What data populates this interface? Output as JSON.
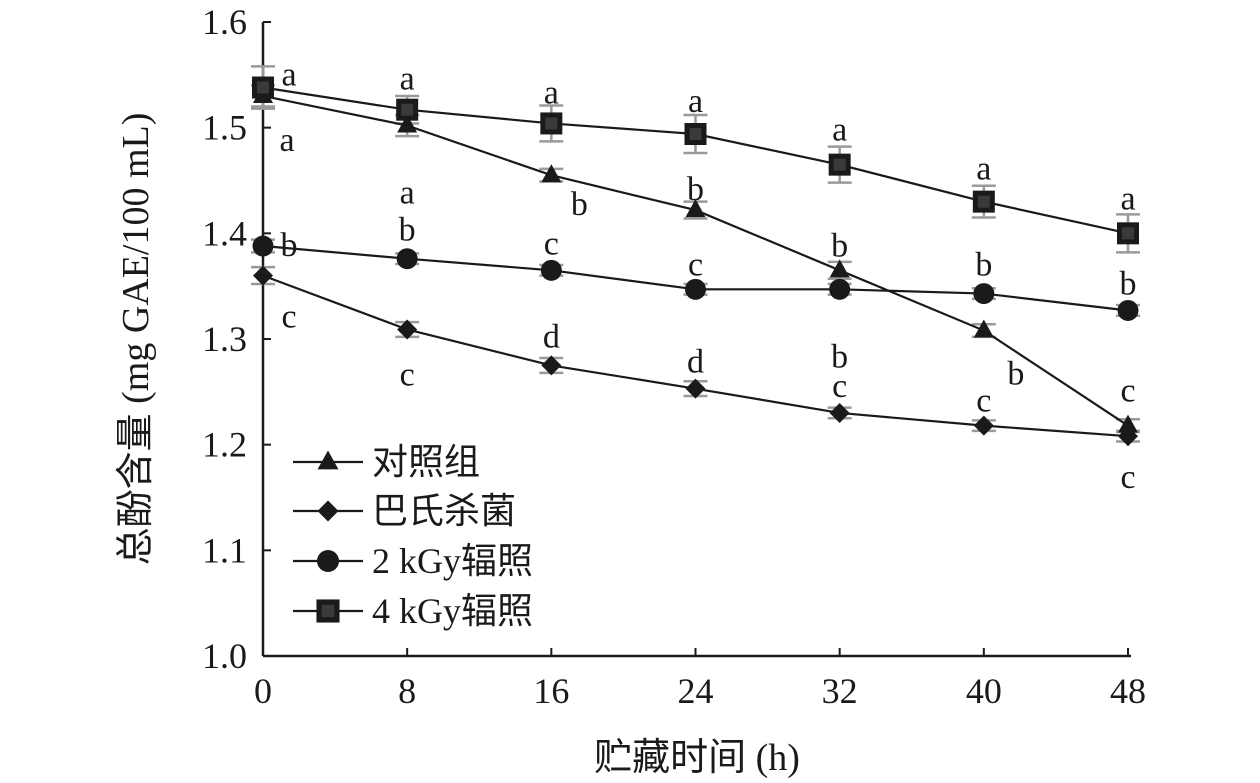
{
  "chart_data": {
    "type": "line",
    "xlabel": "贮藏时间 (h)",
    "ylabel": "总酚含量 (mg GAE/100 mL)",
    "x": [
      0,
      8,
      16,
      24,
      32,
      40,
      48
    ],
    "x_ticks": [
      "0",
      "8",
      "16",
      "24",
      "32",
      "40",
      "48"
    ],
    "xlim": [
      0,
      48
    ],
    "ylim": [
      1.0,
      1.6
    ],
    "y_ticks": [
      "1.0",
      "1.1",
      "1.2",
      "1.3",
      "1.4",
      "1.5",
      "1.6"
    ],
    "grid": false,
    "legend_position": "bottom-left",
    "series": [
      {
        "name": "对照组",
        "marker": "triangle",
        "values": [
          1.53,
          1.502,
          1.455,
          1.422,
          1.365,
          1.308,
          1.218
        ],
        "errors": [
          0.01,
          0.01,
          0.006,
          0.008,
          0.008,
          0.006,
          0.006
        ],
        "letters": [
          "a",
          "a",
          "b",
          "b",
          "b",
          "b",
          "c"
        ]
      },
      {
        "name": "巴氏杀菌",
        "marker": "diamond",
        "values": [
          1.36,
          1.309,
          1.275,
          1.253,
          1.23,
          1.218,
          1.208
        ],
        "errors": [
          0.008,
          0.007,
          0.007,
          0.007,
          0.005,
          0.005,
          0.005
        ],
        "letters": [
          "c",
          "c",
          "d",
          "d",
          "c",
          "c",
          "c"
        ]
      },
      {
        "name": "2 kGy辐照",
        "marker": "circle",
        "values": [
          1.388,
          1.376,
          1.365,
          1.347,
          1.347,
          1.343,
          1.327
        ],
        "errors": [
          0.006,
          0.005,
          0.005,
          0.005,
          0.005,
          0.005,
          0.005
        ],
        "letters": [
          "b",
          "b",
          "c",
          "c",
          "b",
          "b",
          "b"
        ]
      },
      {
        "name": "4 kGy辐照",
        "marker": "square",
        "values": [
          1.538,
          1.517,
          1.504,
          1.494,
          1.465,
          1.43,
          1.4
        ],
        "errors": [
          0.02,
          0.013,
          0.017,
          0.018,
          0.017,
          0.015,
          0.018
        ],
        "letters": [
          "a",
          "a",
          "a",
          "a",
          "a",
          "a",
          "a"
        ]
      }
    ]
  }
}
